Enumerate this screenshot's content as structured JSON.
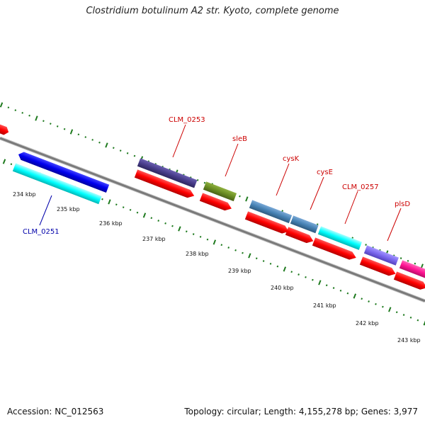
{
  "title": "Clostridium botulinum A2 str. Kyoto, complete genome",
  "footer": {
    "accession": "Accession: NC_012563",
    "summary": "Topology: circular; Length: 4,155,278 bp; Genes: 3,977"
  },
  "scale_labels": [
    "234 kbp",
    "235 kbp",
    "236 kbp",
    "237 kbp",
    "238 kbp",
    "239 kbp",
    "240 kbp",
    "241 kbp",
    "242 kbp",
    "243 kbp"
  ],
  "gene_labels": {
    "clm0251": "CLM_0251",
    "clm0253": "CLM_0253",
    "sleB": "sleB",
    "cysK": "cysK",
    "cysE": "cysE",
    "clm0257": "CLM_0257",
    "plsD": "plsD"
  },
  "colors": {
    "backbone": "#7a7a7a",
    "tick": "#1e7a1e",
    "cds": "#ff0000",
    "label_red": "#cc0000",
    "label_blue": "#0000aa",
    "gene_blue": "#0000ee",
    "gene_cyan": "#00ffff",
    "gene_navy": "#483d8b",
    "gene_olive": "#6b8e23",
    "gene_steel": "#4682b4",
    "gene_slate": "#7b68ee",
    "gene_pink": "#ff1493"
  }
}
